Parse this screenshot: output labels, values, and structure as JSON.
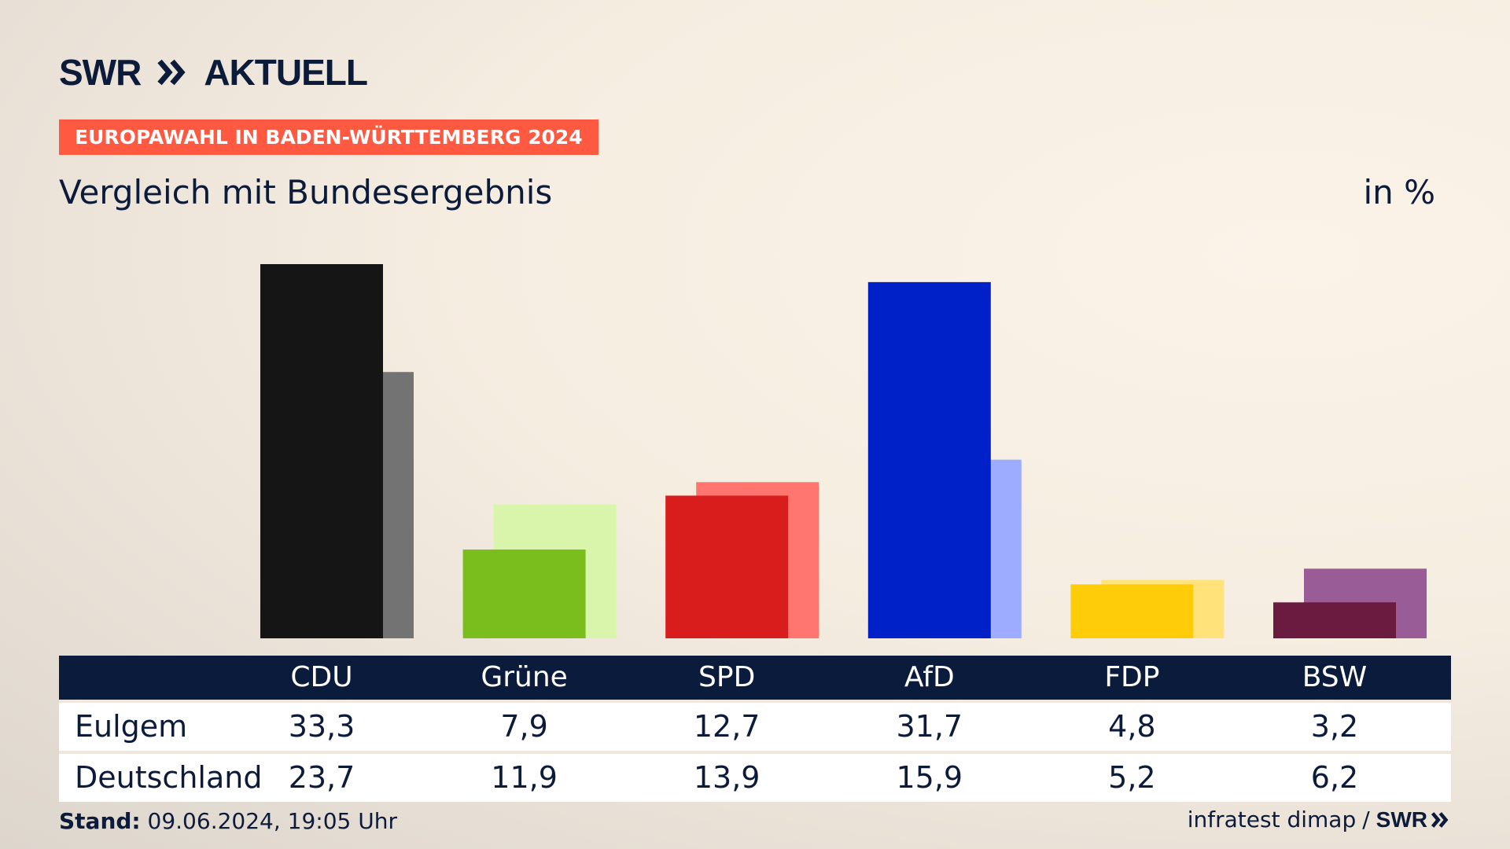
{
  "brand": {
    "name": "SWR",
    "section": "AKTUELL",
    "footer_brand": "SWR"
  },
  "banner": "EUROPAWAHL IN BADEN-WÜRTTEMBERG 2024",
  "subtitle": "Vergleich mit Bundesergebnis",
  "unit": "in %",
  "footer": {
    "stand_label": "Stand:",
    "stand_value": "09.06.2024, 19:05 Uhr",
    "source": "infratest dimap",
    "separator": "/"
  },
  "colors": {
    "CDU": [
      "#151515",
      "#737373"
    ],
    "Grüne": [
      "#79be1d",
      "#d8f5ab"
    ],
    "SPD": [
      "#d91d1d",
      "#ff7570"
    ],
    "AfD": [
      "#0020c8",
      "#9eacff"
    ],
    "FDP": [
      "#ffcc0a",
      "#ffe27a"
    ],
    "BSW": [
      "#6b1a40",
      "#9a5c96"
    ]
  },
  "chart_data": {
    "type": "bar",
    "categories": [
      "CDU",
      "Grüne",
      "SPD",
      "AfD",
      "FDP",
      "BSW"
    ],
    "series": [
      {
        "name": "Eulgem",
        "values": [
          33.3,
          7.9,
          12.7,
          31.7,
          4.8,
          3.2
        ]
      },
      {
        "name": "Deutschland",
        "values": [
          23.7,
          11.9,
          13.9,
          15.9,
          5.2,
          6.2
        ]
      }
    ],
    "tick_labels": {
      "Eulgem": [
        "33,3",
        "7,9",
        "12,7",
        "31,7",
        "4,8",
        "3,2"
      ],
      "Deutschland": [
        "23,7",
        "11,9",
        "13,9",
        "15,9",
        "5,2",
        "6,2"
      ]
    },
    "title": "Vergleich mit Bundesergebnis",
    "ylabel": "in %",
    "ylim": [
      0,
      33.3
    ],
    "grid": false,
    "legend": "table-below"
  }
}
